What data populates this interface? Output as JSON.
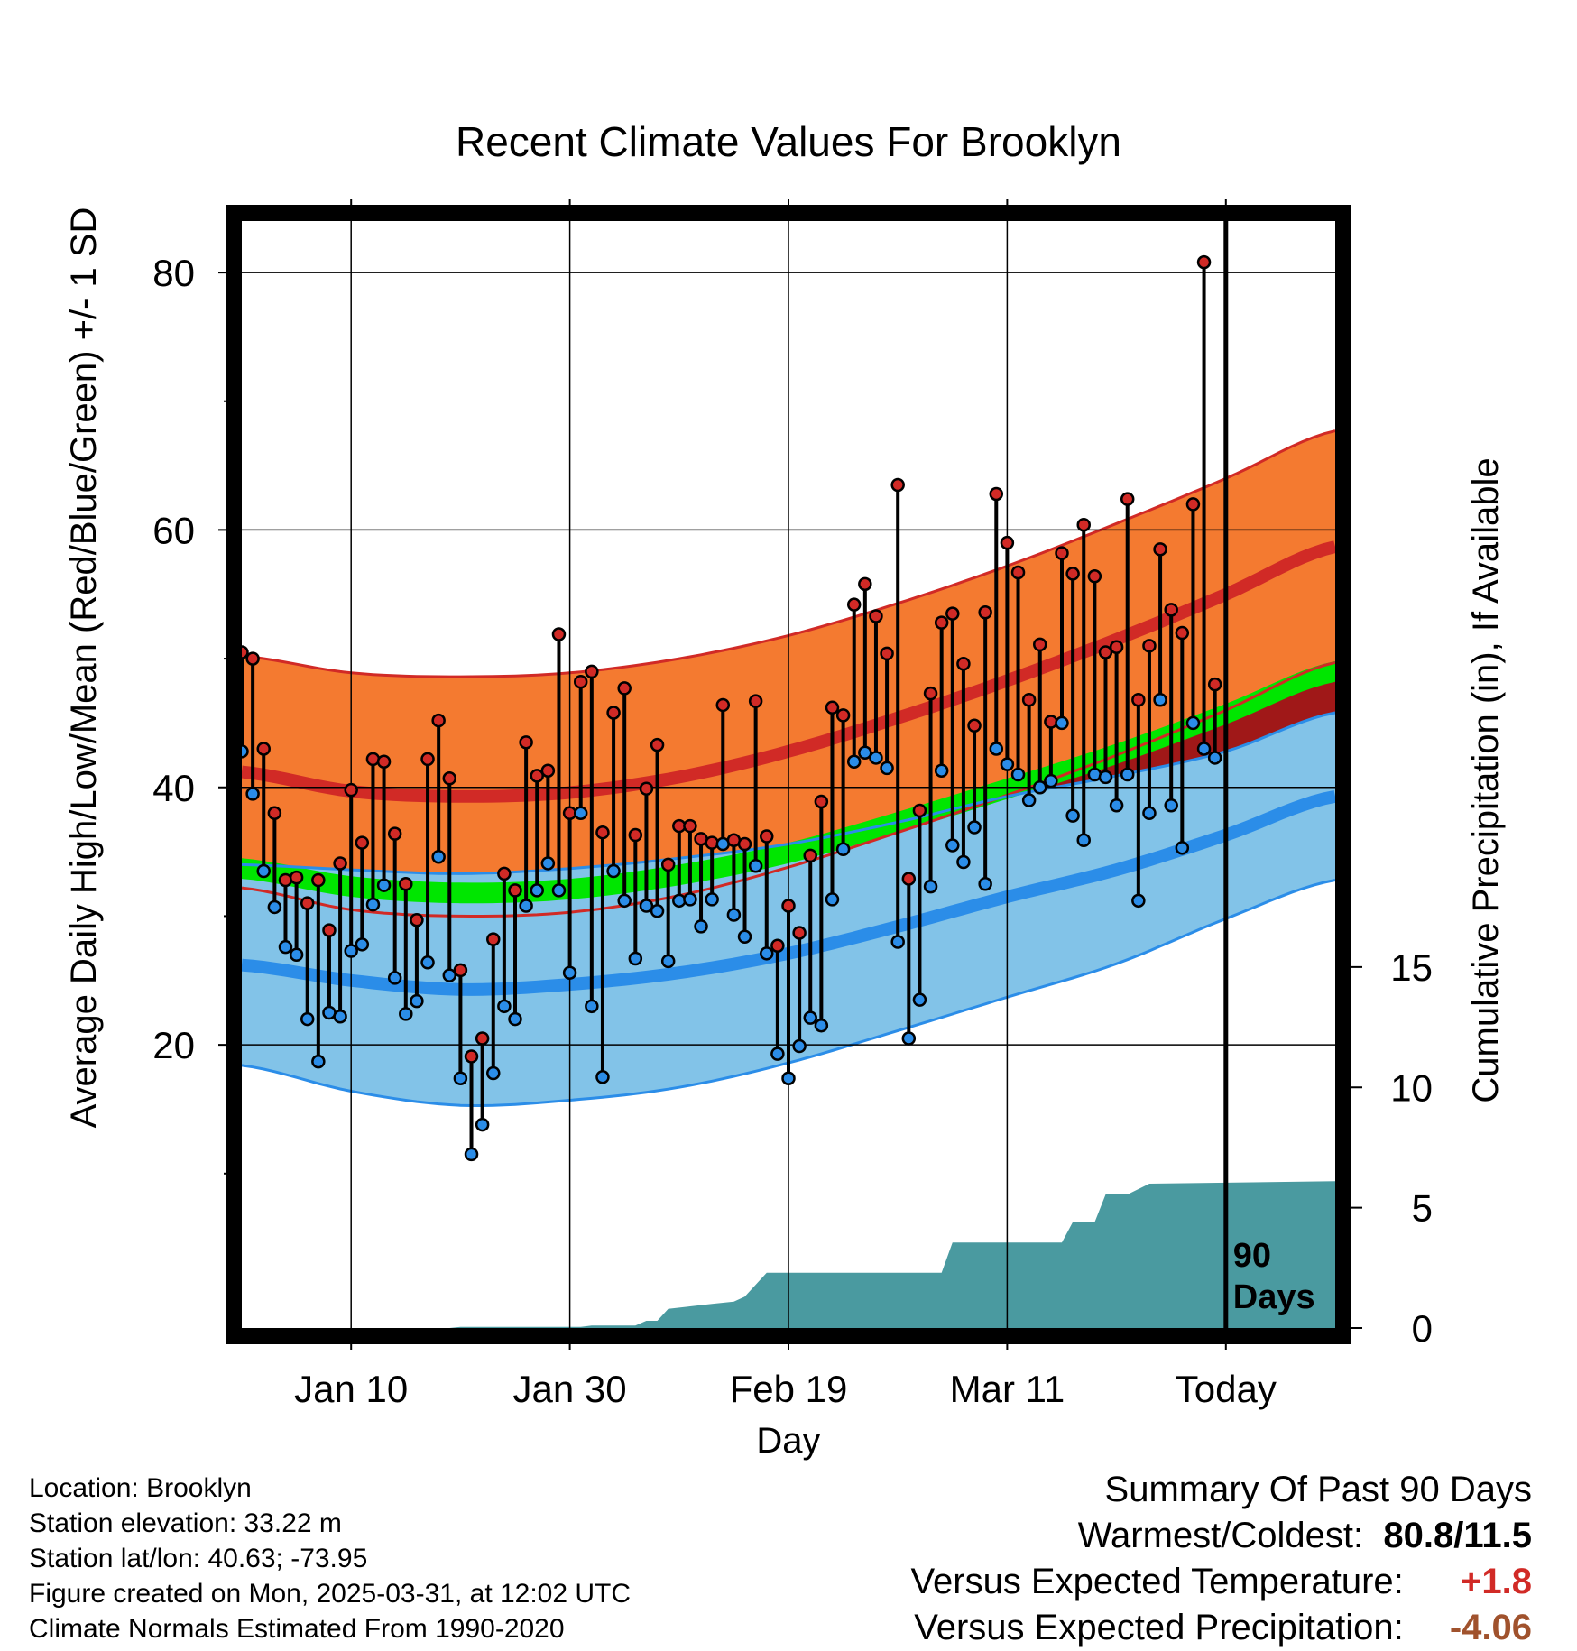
{
  "chart_data": {
    "type": "line",
    "title": "Recent Climate Values For Brooklyn",
    "xlabel": "Day",
    "ylabel": "Average Daily High/Low/Mean (Red/Blue/Green) +/- 1 SD",
    "y2label": "Cumulative Precipitation (in), If Available",
    "xlim": [
      0,
      100
    ],
    "ylim": [
      -2,
      84
    ],
    "y2lim": [
      0,
      46
    ],
    "x_tick_labels": [
      {
        "x": 10,
        "label": "Jan 10"
      },
      {
        "x": 30,
        "label": "Jan 30"
      },
      {
        "x": 50,
        "label": "Feb 19"
      },
      {
        "x": 70,
        "label": "Mar 11"
      },
      {
        "x": 90,
        "label": "Today"
      }
    ],
    "y_ticks": [
      20,
      40,
      60,
      80
    ],
    "y_minor_ticks": [
      10,
      30,
      50,
      70
    ],
    "y2_ticks": [
      0,
      5,
      10,
      15
    ],
    "y2_tick_labels": [
      "0",
      "5",
      "10",
      "15"
    ],
    "today_x": 90,
    "period_label": [
      "90",
      "Days"
    ],
    "colors": {
      "high_band": "#f47a30",
      "high_edge": "#d12a26",
      "high_mean": "#d12a26",
      "low_band": "#82c3e8",
      "low_edge": "#2b8de8",
      "low_mean": "#2b8de8",
      "mean_band": "#00e600",
      "overlap": "#a01818",
      "precip": "#4a9aa0",
      "high_dot": "#d12a26",
      "low_dot": "#2b8de8"
    },
    "normals": {
      "x": [
        0,
        10,
        20,
        30,
        40,
        50,
        60,
        70,
        80,
        90,
        100
      ],
      "high_mean": [
        41.2,
        39.7,
        39.3,
        39.6,
        40.8,
        42.8,
        45.4,
        48.3,
        51.5,
        55.0,
        58.7
      ],
      "high_sd": [
        9.0,
        9.2,
        9.3,
        9.3,
        9.2,
        9.0,
        8.9,
        8.9,
        9.0,
        9.0,
        9.0
      ],
      "low_mean": [
        26.2,
        25.0,
        24.3,
        24.7,
        25.6,
        27.1,
        29.2,
        31.5,
        33.6,
        36.3,
        39.3
      ],
      "low_sd": [
        7.8,
        8.6,
        9.0,
        9.0,
        8.9,
        8.5,
        8.1,
        7.8,
        7.3,
        6.5,
        6.5
      ],
      "mean_mean": [
        33.7,
        32.3,
        31.8,
        32.1,
        33.2,
        34.9,
        37.3,
        39.9,
        42.6,
        45.7,
        49.0
      ],
      "mean_sd": [
        0.8,
        0.8,
        0.8,
        0.8,
        0.8,
        0.8,
        0.8,
        0.8,
        0.8,
        0.8,
        0.8
      ]
    },
    "daily_high": [
      50.5,
      50.0,
      43.0,
      38.0,
      32.8,
      33.0,
      31.0,
      32.8,
      28.9,
      34.1,
      39.8,
      35.7,
      42.2,
      42.0,
      36.4,
      32.5,
      29.7,
      42.2,
      45.2,
      40.7,
      25.8,
      19.1,
      20.5,
      28.2,
      33.3,
      32.0,
      43.5,
      40.9,
      41.3,
      51.9,
      38.0,
      48.2,
      49.0,
      36.5,
      45.8,
      47.7,
      36.3,
      39.9,
      43.3,
      34.0,
      37.0,
      37.0,
      36.0,
      35.7,
      46.4,
      35.9,
      35.6,
      46.7,
      36.2,
      27.7,
      30.8,
      28.7,
      34.7,
      38.9,
      46.2,
      45.6,
      54.2,
      55.8,
      53.3,
      50.4,
      63.5,
      32.9,
      38.2,
      47.3,
      52.8,
      53.5,
      49.6,
      44.8,
      53.6,
      62.8,
      59.0,
      56.7,
      46.8,
      51.1,
      45.1,
      58.2,
      56.6,
      60.4,
      56.4,
      50.5,
      50.9,
      62.4,
      46.8,
      51.0,
      58.5,
      53.8,
      52.0,
      62.0,
      80.8,
      48.0
    ],
    "daily_low": [
      42.8,
      39.5,
      33.5,
      30.7,
      27.6,
      27.0,
      22.0,
      18.7,
      22.5,
      22.2,
      27.3,
      27.8,
      30.9,
      32.4,
      25.2,
      22.4,
      23.4,
      26.4,
      34.6,
      25.4,
      17.4,
      11.5,
      13.8,
      17.8,
      23.0,
      22.0,
      30.8,
      32.0,
      34.1,
      32.0,
      25.6,
      38.0,
      23.0,
      17.5,
      33.5,
      31.2,
      26.7,
      30.8,
      30.4,
      26.5,
      31.2,
      31.3,
      29.2,
      31.3,
      35.6,
      30.1,
      28.4,
      33.9,
      27.1,
      19.3,
      17.4,
      19.9,
      22.1,
      21.5,
      31.3,
      35.2,
      42.0,
      42.7,
      42.3,
      41.5,
      28.0,
      20.5,
      23.5,
      32.3,
      41.3,
      35.5,
      34.2,
      36.9,
      32.5,
      43.0,
      41.8,
      41.0,
      39.0,
      40.0,
      40.5,
      45.0,
      37.8,
      35.9,
      41.0,
      40.8,
      38.6,
      41.0,
      31.2,
      38.0,
      46.8,
      38.6,
      35.3,
      45.0,
      43.0,
      42.3
    ],
    "precip_cumulative": [
      [
        0,
        0.0
      ],
      [
        19,
        0.0
      ],
      [
        20,
        0.05
      ],
      [
        31,
        0.05
      ],
      [
        32,
        0.1
      ],
      [
        36,
        0.1
      ],
      [
        37,
        0.3
      ],
      [
        38,
        0.3
      ],
      [
        39,
        0.8
      ],
      [
        41,
        0.9
      ],
      [
        43,
        1.0
      ],
      [
        45,
        1.1
      ],
      [
        46,
        1.3
      ],
      [
        48,
        2.3
      ],
      [
        64,
        2.3
      ],
      [
        65,
        3.55
      ],
      [
        75,
        3.55
      ],
      [
        76,
        4.4
      ],
      [
        78,
        4.4
      ],
      [
        79,
        5.55
      ],
      [
        81,
        5.55
      ],
      [
        83,
        6.0
      ],
      [
        100,
        6.1
      ]
    ]
  },
  "info": {
    "location": "Location: Brooklyn",
    "elevation": "Station elevation: 33.22 m",
    "latlon": "Station lat/lon: 40.63; -73.95",
    "created": "Figure created on Mon, 2025-03-31, at 12:02 UTC",
    "normals_note": "Climate Normals Estimated From 1990-2020"
  },
  "summary": {
    "heading": "Summary Of Past 90 Days",
    "warmest_label": "Warmest/Coldest:",
    "warmest_value": "80.8/11.5",
    "temp_label": "Versus Expected Temperature:",
    "temp_value": "+1.8",
    "precip_label": "Versus Expected Precipitation:",
    "precip_value": "-4.06"
  }
}
